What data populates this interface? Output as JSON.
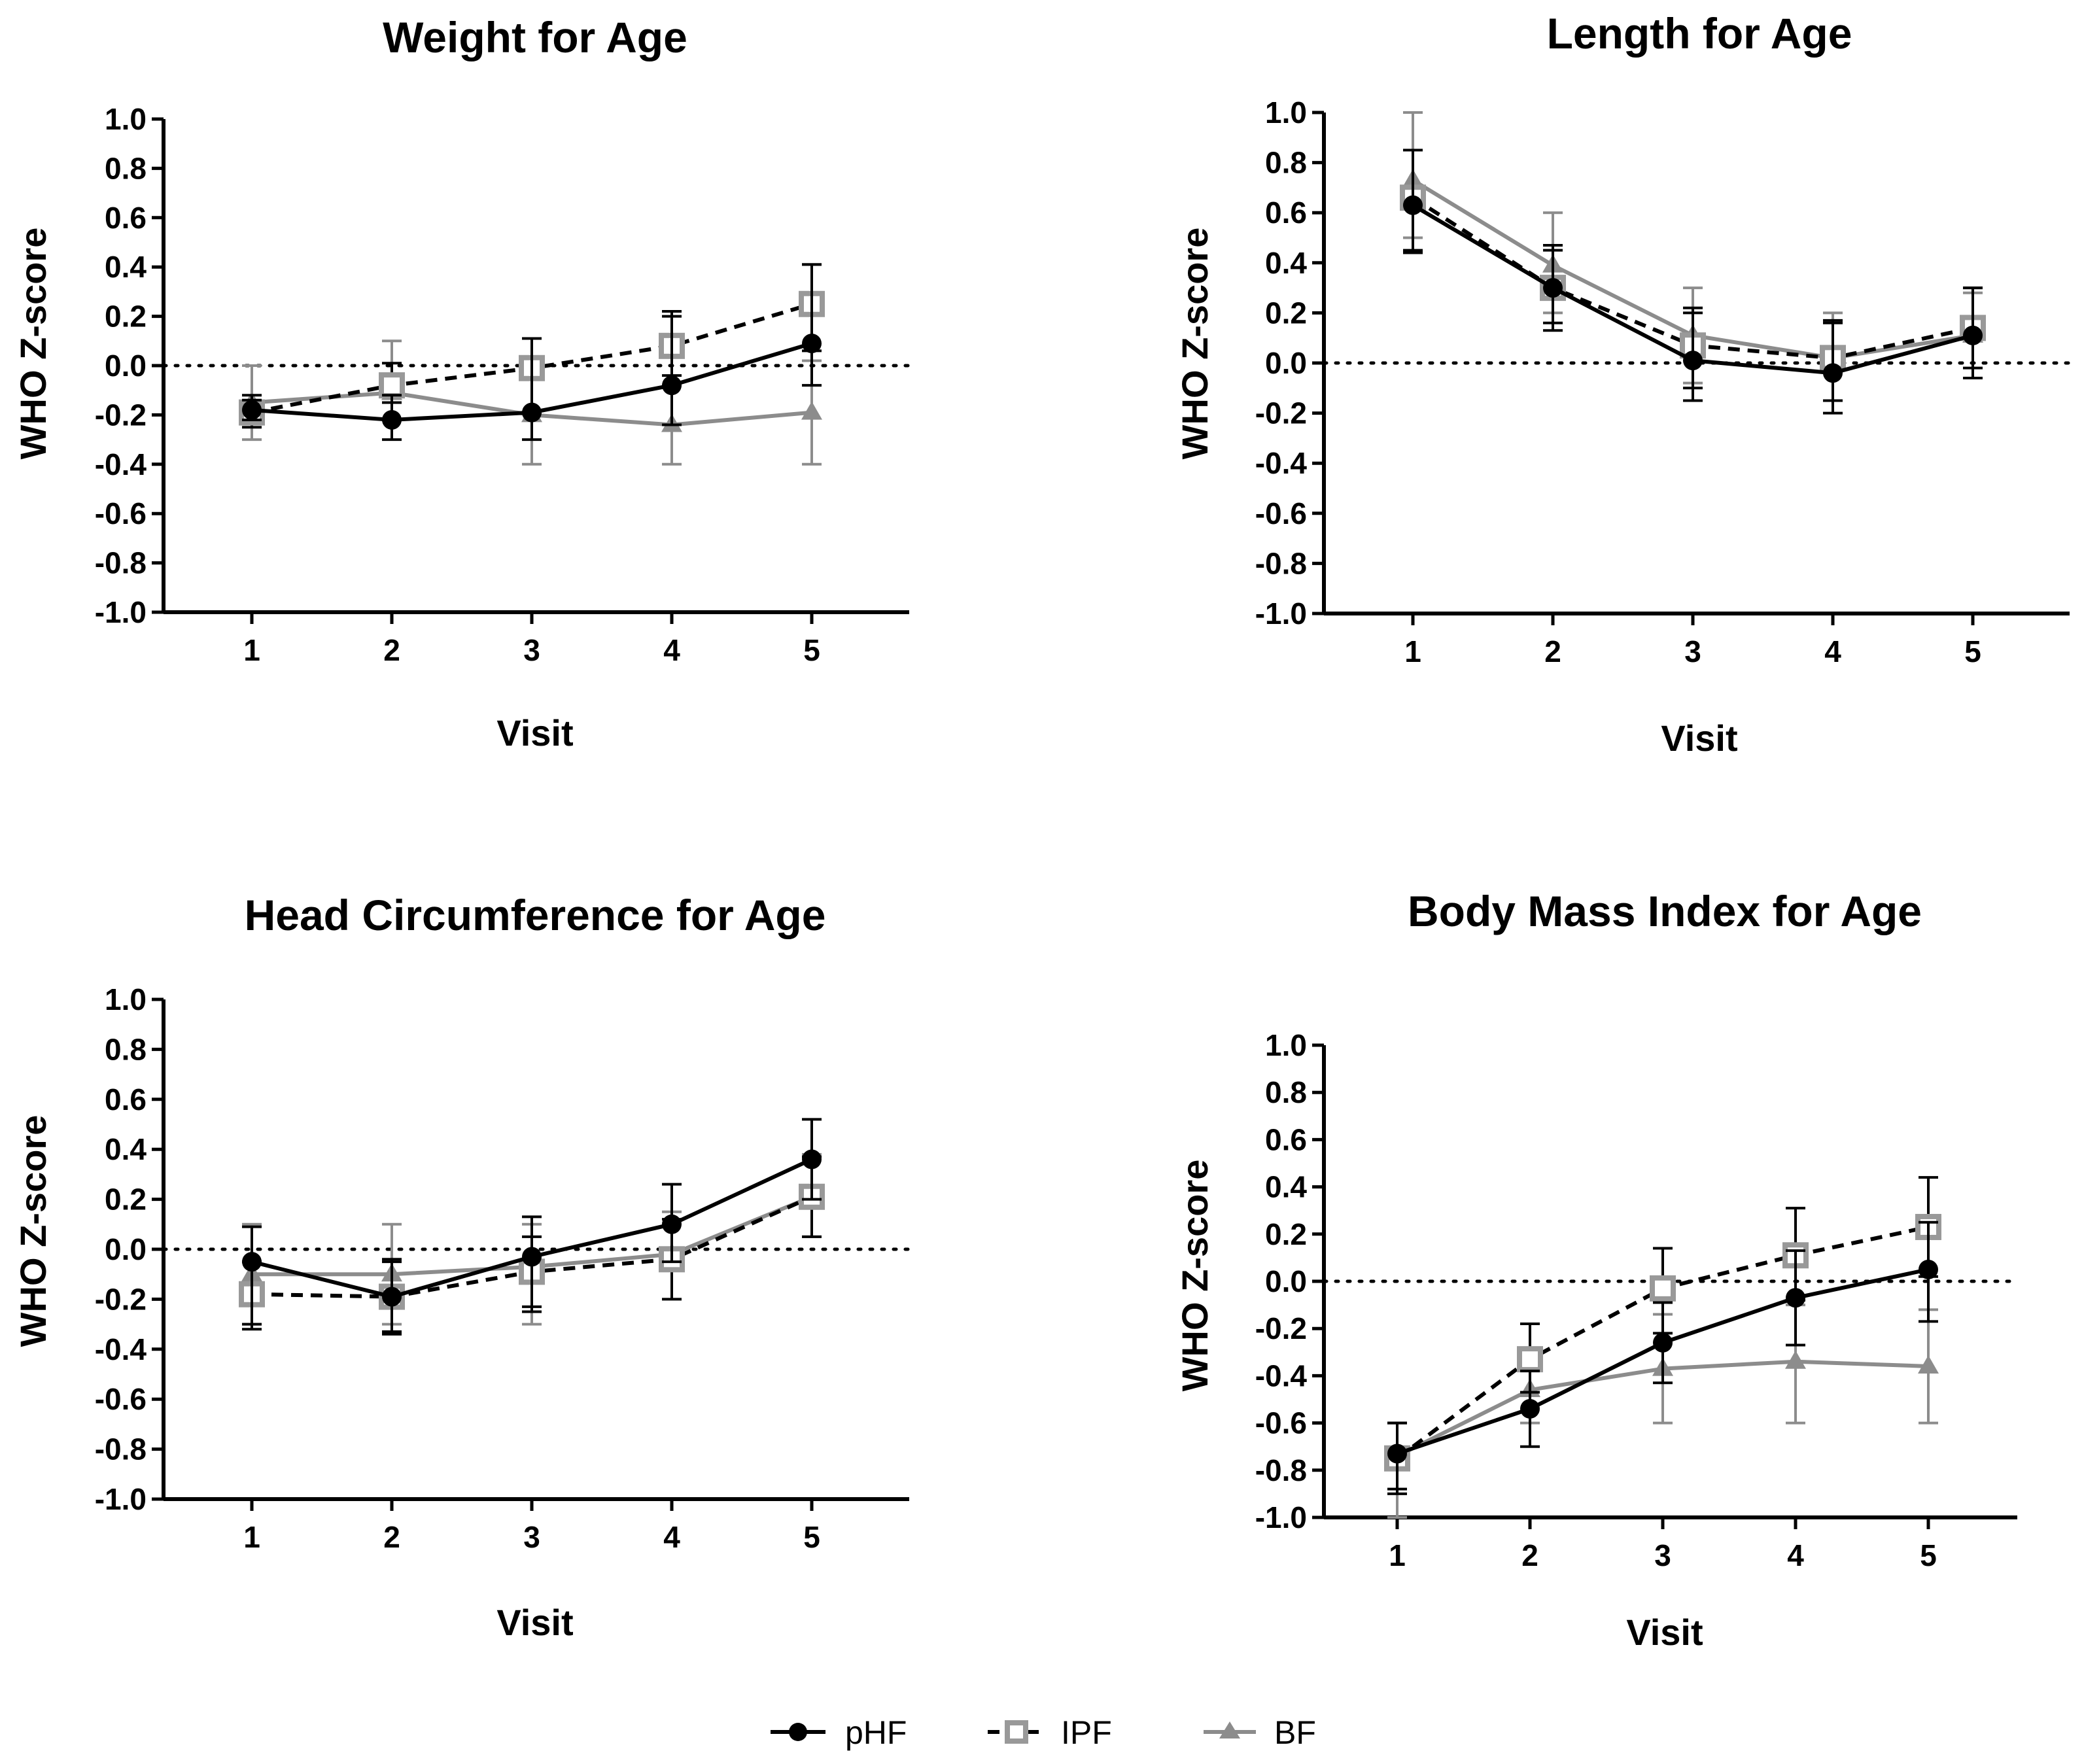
{
  "legend": {
    "items": [
      {
        "label": "pHF",
        "color": "#000000",
        "marker": "circle",
        "dash": "solid",
        "fill": "#000000"
      },
      {
        "label": "IPF",
        "color": "#000000",
        "marker_color": "#999999",
        "marker": "square",
        "dash": "dashed",
        "fill": "#ffffff"
      },
      {
        "label": "BF",
        "color": "#8c8c8c",
        "marker": "triangle",
        "dash": "solid",
        "fill": "#8c8c8c"
      }
    ]
  },
  "chart_data": [
    {
      "type": "line",
      "title": "Weight for Age",
      "xlabel": "Visit",
      "ylabel": "WHO Z-score",
      "categories": [
        1,
        2,
        3,
        4,
        5
      ],
      "ylim": [
        -1.0,
        1.0
      ],
      "yticks": [
        "1.0",
        "0.8",
        "0.6",
        "0.4",
        "0.2",
        "0.0",
        "-0.2",
        "-0.4",
        "-0.6",
        "-0.8",
        "-1.0"
      ],
      "reference_line": 0.0,
      "series": [
        {
          "name": "pHF",
          "values": [
            -0.18,
            -0.22,
            -0.19,
            -0.08,
            0.09
          ],
          "err_low": [
            -0.22,
            -0.3,
            -0.3,
            -0.24,
            -0.08
          ],
          "err_high": [
            -0.14,
            -0.12,
            0.11,
            0.22,
            0.41
          ]
        },
        {
          "name": "IPF",
          "values": [
            -0.19,
            -0.08,
            -0.01,
            0.08,
            0.25
          ],
          "err_low": [
            -0.25,
            -0.15,
            -0.19,
            -0.04,
            0.06
          ],
          "err_high": [
            -0.12,
            0.01,
            0.11,
            0.2,
            0.41
          ]
        },
        {
          "name": "BF",
          "values": [
            -0.15,
            -0.11,
            -0.2,
            -0.24,
            -0.19
          ],
          "err_low": [
            -0.3,
            -0.22,
            -0.4,
            -0.4,
            -0.4
          ],
          "err_high": [
            0.0,
            0.1,
            0.0,
            -0.08,
            0.02
          ]
        }
      ]
    },
    {
      "type": "line",
      "title": "Length for Age",
      "xlabel": "Visit",
      "ylabel": "WHO Z-score",
      "categories": [
        1,
        2,
        3,
        4,
        5
      ],
      "ylim": [
        -1.0,
        1.0
      ],
      "yticks": [
        "1.0",
        "0.8",
        "0.6",
        "0.4",
        "0.2",
        "0.0",
        "-0.2",
        "-0.4",
        "-0.6",
        "-0.8",
        "-1.0"
      ],
      "reference_line": 0.0,
      "series": [
        {
          "name": "pHF",
          "values": [
            0.63,
            0.3,
            0.01,
            -0.04,
            0.11
          ],
          "err_low": [
            0.44,
            0.13,
            -0.15,
            -0.2,
            -0.06
          ],
          "err_high": [
            0.85,
            0.47,
            0.2,
            0.16,
            0.3
          ]
        },
        {
          "name": "IPF",
          "values": [
            0.66,
            0.3,
            0.07,
            0.02,
            0.14
          ],
          "err_low": [
            0.45,
            0.16,
            -0.1,
            -0.15,
            -0.02
          ],
          "err_high": [
            0.85,
            0.45,
            0.22,
            0.17,
            0.3
          ]
        },
        {
          "name": "BF",
          "values": [
            0.73,
            0.39,
            0.11,
            0.02,
            0.11
          ],
          "err_low": [
            0.5,
            0.2,
            -0.08,
            -0.15,
            -0.06
          ],
          "err_high": [
            1.0,
            0.6,
            0.3,
            0.2,
            0.28
          ]
        }
      ]
    },
    {
      "type": "line",
      "title": "Head Circumference for Age",
      "xlabel": "Visit",
      "ylabel": "WHO Z-score",
      "categories": [
        1,
        2,
        3,
        4,
        5
      ],
      "ylim": [
        -1.0,
        1.0
      ],
      "yticks": [
        "1.0",
        "0.8",
        "0.6",
        "0.4",
        "0.2",
        "0.0",
        "-0.2",
        "-0.4",
        "-0.6",
        "-0.8",
        "-1.0"
      ],
      "reference_line": 0.0,
      "series": [
        {
          "name": "pHF",
          "values": [
            -0.05,
            -0.19,
            -0.03,
            0.1,
            0.36
          ],
          "err_low": [
            -0.32,
            -0.34,
            -0.25,
            -0.05,
            0.2
          ],
          "err_high": [
            0.09,
            -0.04,
            0.13,
            0.26,
            0.52
          ]
        },
        {
          "name": "IPF",
          "values": [
            -0.18,
            -0.19,
            -0.09,
            -0.04,
            0.21
          ],
          "err_low": [
            -0.3,
            -0.33,
            -0.23,
            -0.2,
            0.05
          ],
          "err_high": [
            -0.05,
            -0.05,
            0.05,
            0.12,
            0.37
          ]
        },
        {
          "name": "BF",
          "values": [
            -0.1,
            -0.1,
            -0.07,
            -0.02,
            0.21
          ],
          "err_low": [
            -0.3,
            -0.3,
            -0.3,
            -0.2,
            0.05
          ],
          "err_high": [
            0.1,
            0.1,
            0.1,
            0.15,
            0.38
          ]
        }
      ]
    },
    {
      "type": "line",
      "title": "Body Mass Index for Age",
      "xlabel": "Visit",
      "ylabel": "WHO Z-score",
      "categories": [
        1,
        2,
        3,
        4,
        5
      ],
      "ylim": [
        -1.0,
        1.0
      ],
      "yticks": [
        "1.0",
        "0.8",
        "0.6",
        "0.4",
        "0.2",
        "0.0",
        "-0.2",
        "-0.4",
        "-0.6",
        "-0.8",
        "-1.0"
      ],
      "reference_line": 0.0,
      "series": [
        {
          "name": "pHF",
          "values": [
            -0.73,
            -0.54,
            -0.26,
            -0.07,
            0.05
          ],
          "err_low": [
            -0.88,
            -0.7,
            -0.43,
            -0.27,
            -0.17
          ],
          "err_high": [
            -0.6,
            -0.38,
            -0.09,
            0.13,
            0.25
          ]
        },
        {
          "name": "IPF",
          "values": [
            -0.75,
            -0.33,
            -0.03,
            0.11,
            0.23
          ],
          "err_low": [
            -0.9,
            -0.47,
            -0.22,
            -0.08,
            0.02
          ],
          "err_high": [
            -0.6,
            -0.18,
            0.14,
            0.31,
            0.44
          ]
        },
        {
          "name": "BF",
          "values": [
            -0.74,
            -0.46,
            -0.37,
            -0.34,
            -0.36
          ],
          "err_low": [
            -1.0,
            -0.6,
            -0.6,
            -0.6,
            -0.6
          ],
          "err_high": [
            -0.6,
            -0.32,
            -0.14,
            -0.1,
            -0.12
          ]
        }
      ]
    }
  ]
}
